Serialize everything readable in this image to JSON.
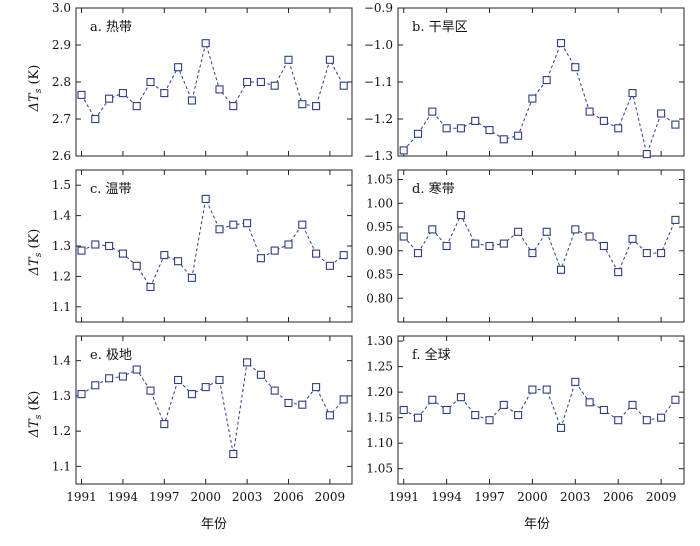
{
  "figure": {
    "x_title": "年份",
    "y_title_prefix": "ΔT",
    "y_title_sub": "s",
    "y_title_suffix": " (K)"
  },
  "colors": {
    "series": "#2f3a8f",
    "frame": "#222222"
  },
  "chart_data": [
    {
      "type": "line",
      "panel": "a",
      "title": "a. 热带",
      "xlim": [
        1990.6,
        2010.6
      ],
      "ylim": [
        2.6,
        3.0
      ],
      "yticks": [
        2.6,
        2.7,
        2.8,
        2.9,
        3.0
      ],
      "ytick_labels": [
        "2.6",
        "2.7",
        "2.8",
        "2.9",
        "3.0"
      ],
      "xticks": [
        1991,
        1994,
        1997,
        2000,
        2003,
        2006,
        2009
      ],
      "xtick_labels": [],
      "x": [
        1991,
        1992,
        1993,
        1994,
        1995,
        1996,
        1997,
        1998,
        1999,
        2000,
        2001,
        2002,
        2003,
        2004,
        2005,
        2006,
        2007,
        2008,
        2009,
        2010
      ],
      "y": [
        2.765,
        2.7,
        2.755,
        2.77,
        2.735,
        2.8,
        2.77,
        2.84,
        2.75,
        2.905,
        2.78,
        2.735,
        2.8,
        2.8,
        2.79,
        2.86,
        2.74,
        2.735,
        2.86,
        2.79
      ]
    },
    {
      "type": "line",
      "panel": "b",
      "title": "b. 干旱区",
      "xlim": [
        1990.6,
        2010.6
      ],
      "ylim": [
        -1.3,
        -0.9
      ],
      "yticks": [
        -1.3,
        -1.2,
        -1.1,
        -1.0,
        -0.9
      ],
      "ytick_labels": [
        "−1.3",
        "−1.2",
        "−1.1",
        "−1.0",
        "−0.9"
      ],
      "xticks": [
        1991,
        1994,
        1997,
        2000,
        2003,
        2006,
        2009
      ],
      "xtick_labels": [],
      "x": [
        1991,
        1992,
        1993,
        1994,
        1995,
        1996,
        1997,
        1998,
        1999,
        2000,
        2001,
        2002,
        2003,
        2004,
        2005,
        2006,
        2007,
        2008,
        2009,
        2010
      ],
      "y": [
        -1.285,
        -1.24,
        -1.18,
        -1.225,
        -1.225,
        -1.205,
        -1.23,
        -1.255,
        -1.245,
        -1.145,
        -1.095,
        -0.995,
        -1.06,
        -1.18,
        -1.205,
        -1.225,
        -1.13,
        -1.295,
        -1.185,
        -1.215
      ]
    },
    {
      "type": "line",
      "panel": "c",
      "title": "c. 温带",
      "xlim": [
        1990.6,
        2010.6
      ],
      "ylim": [
        1.05,
        1.55
      ],
      "yticks": [
        1.1,
        1.2,
        1.3,
        1.4,
        1.5
      ],
      "ytick_labels": [
        "1.1",
        "1.2",
        "1.3",
        "1.4",
        "1.5"
      ],
      "xticks": [
        1991,
        1994,
        1997,
        2000,
        2003,
        2006,
        2009
      ],
      "xtick_labels": [],
      "x": [
        1991,
        1992,
        1993,
        1994,
        1995,
        1996,
        1997,
        1998,
        1999,
        2000,
        2001,
        2002,
        2003,
        2004,
        2005,
        2006,
        2007,
        2008,
        2009,
        2010
      ],
      "y": [
        1.285,
        1.305,
        1.3,
        1.275,
        1.235,
        1.165,
        1.27,
        1.25,
        1.195,
        1.455,
        1.355,
        1.37,
        1.375,
        1.26,
        1.285,
        1.305,
        1.37,
        1.275,
        1.235,
        1.27
      ]
    },
    {
      "type": "line",
      "panel": "d",
      "title": "d. 寒带",
      "xlim": [
        1990.6,
        2010.6
      ],
      "ylim": [
        0.75,
        1.07
      ],
      "yticks": [
        0.8,
        0.85,
        0.9,
        0.95,
        1.0,
        1.05
      ],
      "ytick_labels": [
        "0.80",
        "0.85",
        "0.90",
        "0.95",
        "1.00",
        "1.05"
      ],
      "xticks": [
        1991,
        1994,
        1997,
        2000,
        2003,
        2006,
        2009
      ],
      "xtick_labels": [],
      "x": [
        1991,
        1992,
        1993,
        1994,
        1995,
        1996,
        1997,
        1998,
        1999,
        2000,
        2001,
        2002,
        2003,
        2004,
        2005,
        2006,
        2007,
        2008,
        2009,
        2010
      ],
      "y": [
        0.93,
        0.895,
        0.945,
        0.91,
        0.975,
        0.915,
        0.91,
        0.915,
        0.94,
        0.895,
        0.94,
        0.86,
        0.945,
        0.93,
        0.91,
        0.855,
        0.925,
        0.895,
        0.895,
        0.965
      ]
    },
    {
      "type": "line",
      "panel": "e",
      "title": "e. 极地",
      "xlim": [
        1990.6,
        2010.6
      ],
      "ylim": [
        1.05,
        1.47
      ],
      "yticks": [
        1.1,
        1.2,
        1.3,
        1.4
      ],
      "ytick_labels": [
        "1.1",
        "1.2",
        "1.3",
        "1.4"
      ],
      "xticks": [
        1991,
        1994,
        1997,
        2000,
        2003,
        2006,
        2009
      ],
      "xtick_labels": [
        "1991",
        "1994",
        "1997",
        "2000",
        "2003",
        "2006",
        "2009"
      ],
      "x": [
        1991,
        1992,
        1993,
        1994,
        1995,
        1996,
        1997,
        1998,
        1999,
        2000,
        2001,
        2002,
        2003,
        2004,
        2005,
        2006,
        2007,
        2008,
        2009,
        2010
      ],
      "y": [
        1.305,
        1.33,
        1.35,
        1.355,
        1.375,
        1.315,
        1.22,
        1.345,
        1.305,
        1.325,
        1.345,
        1.135,
        1.395,
        1.36,
        1.315,
        1.28,
        1.275,
        1.325,
        1.245,
        1.29
      ]
    },
    {
      "type": "line",
      "panel": "f",
      "title": "f. 全球",
      "xlim": [
        1990.6,
        2010.6
      ],
      "ylim": [
        1.02,
        1.31
      ],
      "yticks": [
        1.05,
        1.1,
        1.15,
        1.2,
        1.25,
        1.3
      ],
      "ytick_labels": [
        "1.05",
        "1.10",
        "1.15",
        "1.20",
        "1.25",
        "1.30"
      ],
      "xticks": [
        1991,
        1994,
        1997,
        2000,
        2003,
        2006,
        2009
      ],
      "xtick_labels": [
        "1991",
        "1994",
        "1997",
        "2000",
        "2003",
        "2006",
        "2009"
      ],
      "x": [
        1991,
        1992,
        1993,
        1994,
        1995,
        1996,
        1997,
        1998,
        1999,
        2000,
        2001,
        2002,
        2003,
        2004,
        2005,
        2006,
        2007,
        2008,
        2009,
        2010
      ],
      "y": [
        1.165,
        1.15,
        1.185,
        1.165,
        1.19,
        1.155,
        1.145,
        1.175,
        1.155,
        1.205,
        1.205,
        1.13,
        1.22,
        1.18,
        1.165,
        1.145,
        1.175,
        1.145,
        1.15,
        1.185
      ]
    }
  ]
}
